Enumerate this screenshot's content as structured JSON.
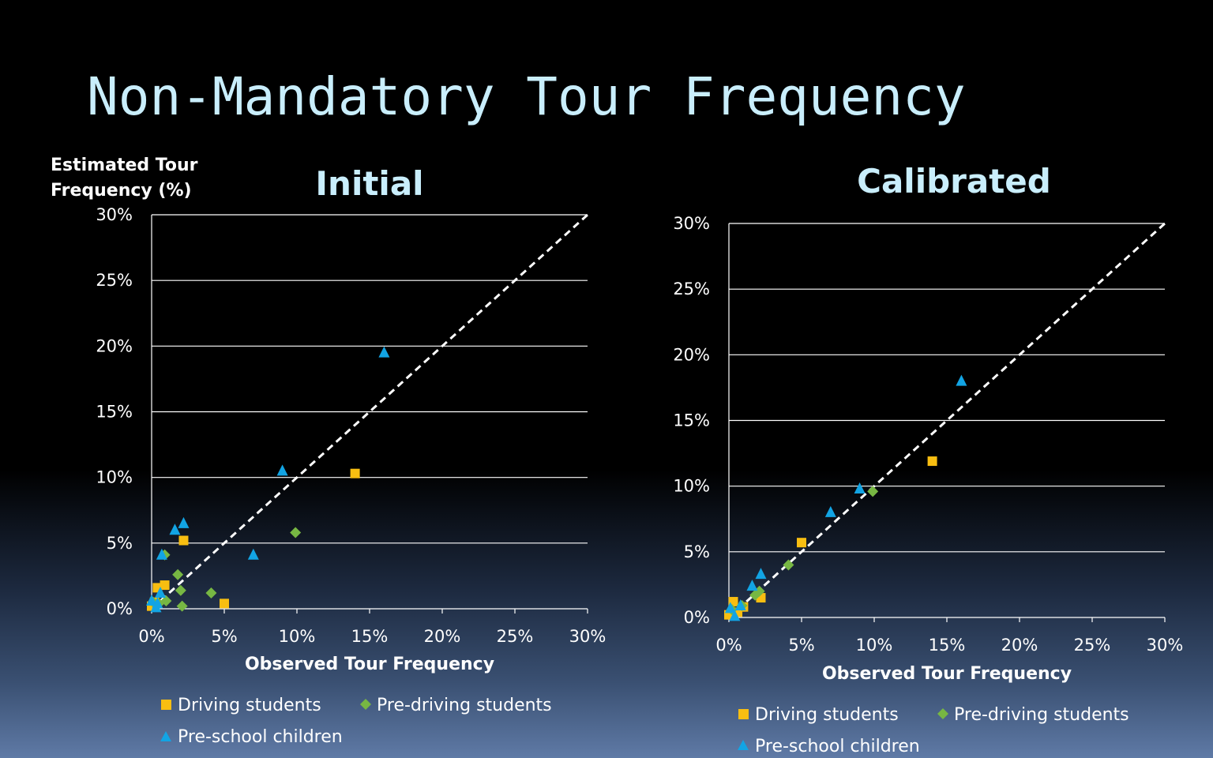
{
  "slide": {
    "title": "Non-Mandatory Tour Frequency"
  },
  "colors": {
    "driving": "#f8be11",
    "predriving": "#77b743",
    "preschool": "#12a4e4",
    "gridline": "#ffffff",
    "diagonal": "#ffffff"
  },
  "chart_data": [
    {
      "type": "scatter",
      "title": "Initial",
      "xlabel": "Observed Tour Frequency",
      "ylabel": "Estimated Tour Frequency (%)",
      "xlim": [
        0,
        30
      ],
      "ylim": [
        0,
        30
      ],
      "x_ticks": [
        "0%",
        "5%",
        "10%",
        "15%",
        "20%",
        "25%",
        "30%"
      ],
      "y_ticks": [
        "0%",
        "5%",
        "10%",
        "15%",
        "20%",
        "25%",
        "30%"
      ],
      "grid": "horizontal",
      "reference_line": "y = x (dashed)",
      "legend_position": "bottom",
      "series": [
        {
          "name": "Driving students",
          "marker": "square",
          "color": "#f8be11",
          "points": [
            [
              0.0,
              0.2
            ],
            [
              0.2,
              0.5
            ],
            [
              0.4,
              1.6
            ],
            [
              0.9,
              1.8
            ],
            [
              2.2,
              5.2
            ],
            [
              5.0,
              0.4
            ],
            [
              14.0,
              10.3
            ]
          ]
        },
        {
          "name": "Pre-driving students",
          "marker": "diamond",
          "color": "#77b743",
          "points": [
            [
              0.1,
              0.5
            ],
            [
              0.5,
              0.4
            ],
            [
              0.9,
              4.1
            ],
            [
              1.0,
              0.6
            ],
            [
              1.8,
              2.6
            ],
            [
              2.0,
              1.4
            ],
            [
              2.1,
              0.2
            ],
            [
              4.1,
              1.2
            ],
            [
              9.9,
              5.8
            ]
          ]
        },
        {
          "name": "Pre-school children",
          "marker": "triangle",
          "color": "#12a4e4",
          "points": [
            [
              0.0,
              0.6
            ],
            [
              0.3,
              0.1
            ],
            [
              0.4,
              0.4
            ],
            [
              0.6,
              1.2
            ],
            [
              0.7,
              4.1
            ],
            [
              1.6,
              6.0
            ],
            [
              2.2,
              6.5
            ],
            [
              7.0,
              4.1
            ],
            [
              9.0,
              10.5
            ],
            [
              16.0,
              19.5
            ]
          ]
        }
      ]
    },
    {
      "type": "scatter",
      "title": "Calibrated",
      "xlabel": "Observed Tour Frequency",
      "ylabel": "",
      "xlim": [
        0,
        30
      ],
      "ylim": [
        0,
        30
      ],
      "x_ticks": [
        "0%",
        "5%",
        "10%",
        "15%",
        "20%",
        "25%",
        "30%"
      ],
      "y_ticks": [
        "0%",
        "5%",
        "10%",
        "15%",
        "20%",
        "25%",
        "30%"
      ],
      "grid": "horizontal",
      "reference_line": "y = x (dashed)",
      "legend_position": "bottom",
      "series": [
        {
          "name": "Driving students",
          "marker": "square",
          "color": "#f8be11",
          "points": [
            [
              0.0,
              0.2
            ],
            [
              0.3,
              1.2
            ],
            [
              0.6,
              0.4
            ],
            [
              1.0,
              0.8
            ],
            [
              2.2,
              1.5
            ],
            [
              5.0,
              5.7
            ],
            [
              14.0,
              11.9
            ]
          ]
        },
        {
          "name": "Pre-driving students",
          "marker": "diamond",
          "color": "#77b743",
          "points": [
            [
              0.2,
              0.6
            ],
            [
              0.9,
              0.9
            ],
            [
              1.8,
              1.7
            ],
            [
              2.1,
              2.0
            ],
            [
              4.1,
              4.0
            ],
            [
              9.9,
              9.6
            ]
          ]
        },
        {
          "name": "Pre-school children",
          "marker": "triangle",
          "color": "#12a4e4",
          "points": [
            [
              0.1,
              0.7
            ],
            [
              0.4,
              0.1
            ],
            [
              0.8,
              0.9
            ],
            [
              1.6,
              2.4
            ],
            [
              2.2,
              3.3
            ],
            [
              7.0,
              8.0
            ],
            [
              9.0,
              9.8
            ],
            [
              16.0,
              18.0
            ]
          ]
        }
      ]
    }
  ]
}
